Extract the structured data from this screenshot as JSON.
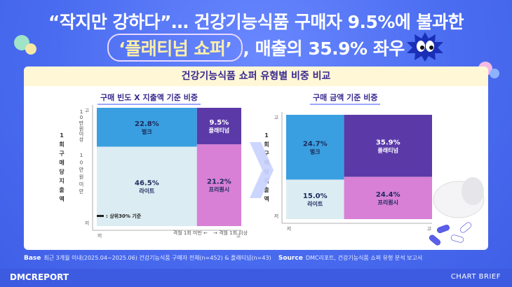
{
  "headline": {
    "line1": "“작지만 강하다”… 건강기능식품 구매자 9.5%에 불과한",
    "line2_highlight": "‘플래티넘 쇼퍼’",
    "line2_rest": ", 매출의 35.9% 좌우"
  },
  "colors": {
    "background": "#4a6cf0",
    "bulk": "#3a9fe0",
    "platinum": "#5b3aa8",
    "light": "#dcecf3",
    "premium": "#d880d6",
    "panel_header": "#fff7d6"
  },
  "card_title": "건강기능식품 쇼퍼 유형별 비중 비교",
  "chart_data": [
    {
      "type": "mosaic",
      "title": "구매 빈도 X 지출액 기준 비중",
      "ylabel": "1회 구매당 지출액",
      "y_axis_ends": {
        "top": "고",
        "bottom": "저"
      },
      "x_axis_ends": {
        "left": "저",
        "right": "고"
      },
      "row_labels": [
        "10만원 이상",
        "10만원 미만"
      ],
      "legend": {
        "marker": "상위30% 기준",
        "col_left": "격월 1회 미만",
        "col_right": "격월 1회 이상"
      },
      "cells": [
        {
          "name": "벌크",
          "value": 22.8,
          "row": "top",
          "col": "left",
          "label": "22.8%"
        },
        {
          "name": "플래티넘",
          "value": 9.5,
          "row": "top",
          "col": "right",
          "label": "9.5%"
        },
        {
          "name": "라이트",
          "value": 46.5,
          "row": "bottom",
          "col": "left",
          "label": "46.5%"
        },
        {
          "name": "프리퀀시",
          "value": 21.2,
          "row": "bottom",
          "col": "right",
          "label": "21.2%"
        }
      ]
    },
    {
      "type": "mosaic",
      "title": "구매 금액 기준 비중",
      "ylabel": "1회 구매당 지출액",
      "y_axis_ends": {
        "top": "고",
        "bottom": "저"
      },
      "x_axis_ends": {
        "left": "저",
        "right": "고"
      },
      "cells": [
        {
          "name": "벌크",
          "value": 24.7,
          "row": "top",
          "col": "left",
          "label": "24.7%"
        },
        {
          "name": "플래티넘",
          "value": 35.9,
          "row": "top",
          "col": "right",
          "label": "35.9%"
        },
        {
          "name": "라이트",
          "value": 15.0,
          "row": "bottom",
          "col": "left",
          "label": "15.0%"
        },
        {
          "name": "프리퀀시",
          "value": 24.4,
          "row": "bottom",
          "col": "right",
          "label": "24.4%"
        }
      ]
    }
  ],
  "footer": {
    "base_label": "Base",
    "base_text": "최근 3개월 이내(2025.04~2025.06) 건강기능식품 구매자 전체(n=452) & 플래티넘(n=43)",
    "source_label": "Source",
    "source_text": "DMC리포트, 건강기능식품 쇼퍼 유형 분석 보고서"
  },
  "brand": "DMCREPORT",
  "tagline": "CHART BRIEF"
}
